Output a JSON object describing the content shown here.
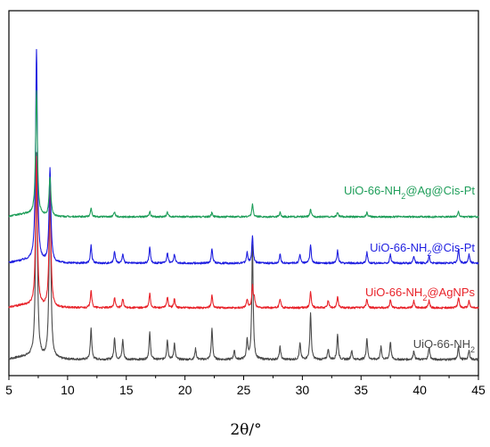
{
  "chart_data": {
    "type": "line",
    "xlabel": "2θ/°",
    "ylabel": "",
    "xlim": [
      5,
      45
    ],
    "xticks": [
      5,
      10,
      15,
      20,
      25,
      30,
      35,
      40,
      45
    ],
    "yticks_shown": false,
    "grid": false,
    "legend": "inline labels above each trace, right side",
    "series": [
      {
        "name": "UiO-66-NH2",
        "label_main": "UiO-66-NH",
        "label_sub": "2",
        "label_tail": "",
        "color": "#4a4a4a",
        "baseline": 403,
        "noise": 1.2,
        "peaks": [
          [
            7.35,
            230
          ],
          [
            8.5,
            195
          ],
          [
            12.0,
            35
          ],
          [
            14.0,
            25
          ],
          [
            14.7,
            22
          ],
          [
            17.0,
            30
          ],
          [
            18.5,
            22
          ],
          [
            19.1,
            18
          ],
          [
            20.9,
            12
          ],
          [
            22.3,
            34
          ],
          [
            24.2,
            10
          ],
          [
            25.3,
            22
          ],
          [
            25.75,
            128
          ],
          [
            28.1,
            14
          ],
          [
            29.8,
            18
          ],
          [
            30.7,
            52
          ],
          [
            32.2,
            12
          ],
          [
            33.0,
            28
          ],
          [
            34.2,
            10
          ],
          [
            35.5,
            24
          ],
          [
            36.7,
            14
          ],
          [
            37.5,
            20
          ],
          [
            39.5,
            10
          ],
          [
            40.8,
            14
          ],
          [
            43.3,
            14
          ],
          [
            44.2,
            10
          ]
        ]
      },
      {
        "name": "UiO-66-NH2@AgNPs",
        "label_main": "UiO-66-NH",
        "label_sub": "2",
        "label_tail": "@AgNPs",
        "color": "#e8232a",
        "baseline": 345,
        "noise": 1.1,
        "peaks": [
          [
            7.35,
            168
          ],
          [
            8.5,
            140
          ],
          [
            12.0,
            20
          ],
          [
            14.0,
            12
          ],
          [
            14.7,
            10
          ],
          [
            17.0,
            16
          ],
          [
            18.5,
            12
          ],
          [
            19.1,
            10
          ],
          [
            22.3,
            14
          ],
          [
            25.3,
            10
          ],
          [
            25.75,
            24
          ],
          [
            25.9,
            10
          ],
          [
            28.1,
            10
          ],
          [
            30.7,
            18
          ],
          [
            32.2,
            8
          ],
          [
            33.0,
            12
          ],
          [
            35.5,
            10
          ],
          [
            37.5,
            9
          ],
          [
            39.5,
            8
          ],
          [
            40.8,
            8
          ],
          [
            43.3,
            12
          ],
          [
            44.2,
            8
          ]
        ]
      },
      {
        "name": "UiO-66-NH2@Cis-Pt",
        "label_main": "UiO-66-NH",
        "label_sub": "2",
        "label_tail": "@Cis-Pt",
        "color": "#1f1fe0",
        "baseline": 295,
        "noise": 1.1,
        "peaks": [
          [
            7.35,
            238
          ],
          [
            8.5,
            106
          ],
          [
            12.0,
            20
          ],
          [
            14.0,
            14
          ],
          [
            14.7,
            10
          ],
          [
            17.0,
            18
          ],
          [
            18.5,
            12
          ],
          [
            19.1,
            10
          ],
          [
            22.3,
            16
          ],
          [
            25.3,
            12
          ],
          [
            25.75,
            30
          ],
          [
            28.1,
            10
          ],
          [
            29.8,
            10
          ],
          [
            30.7,
            20
          ],
          [
            33.0,
            14
          ],
          [
            35.5,
            12
          ],
          [
            37.5,
            10
          ],
          [
            39.5,
            8
          ],
          [
            40.8,
            8
          ],
          [
            43.3,
            16
          ],
          [
            44.2,
            10
          ]
        ]
      },
      {
        "name": "UiO-66-NH2@Ag@Cis-Pt",
        "label_main": "UiO-66-NH",
        "label_sub": "2",
        "label_tail": "@Ag@Cis-Pt",
        "color": "#1f9e5a",
        "baseline": 243,
        "noise": 1.0,
        "peaks": [
          [
            7.35,
            140
          ],
          [
            8.5,
            44
          ],
          [
            12.0,
            10
          ],
          [
            14.0,
            6
          ],
          [
            17.0,
            6
          ],
          [
            18.5,
            5
          ],
          [
            22.3,
            5
          ],
          [
            25.75,
            14
          ],
          [
            28.1,
            5
          ],
          [
            30.7,
            8
          ],
          [
            33.0,
            5
          ],
          [
            35.5,
            5
          ],
          [
            43.3,
            6
          ]
        ]
      }
    ]
  }
}
